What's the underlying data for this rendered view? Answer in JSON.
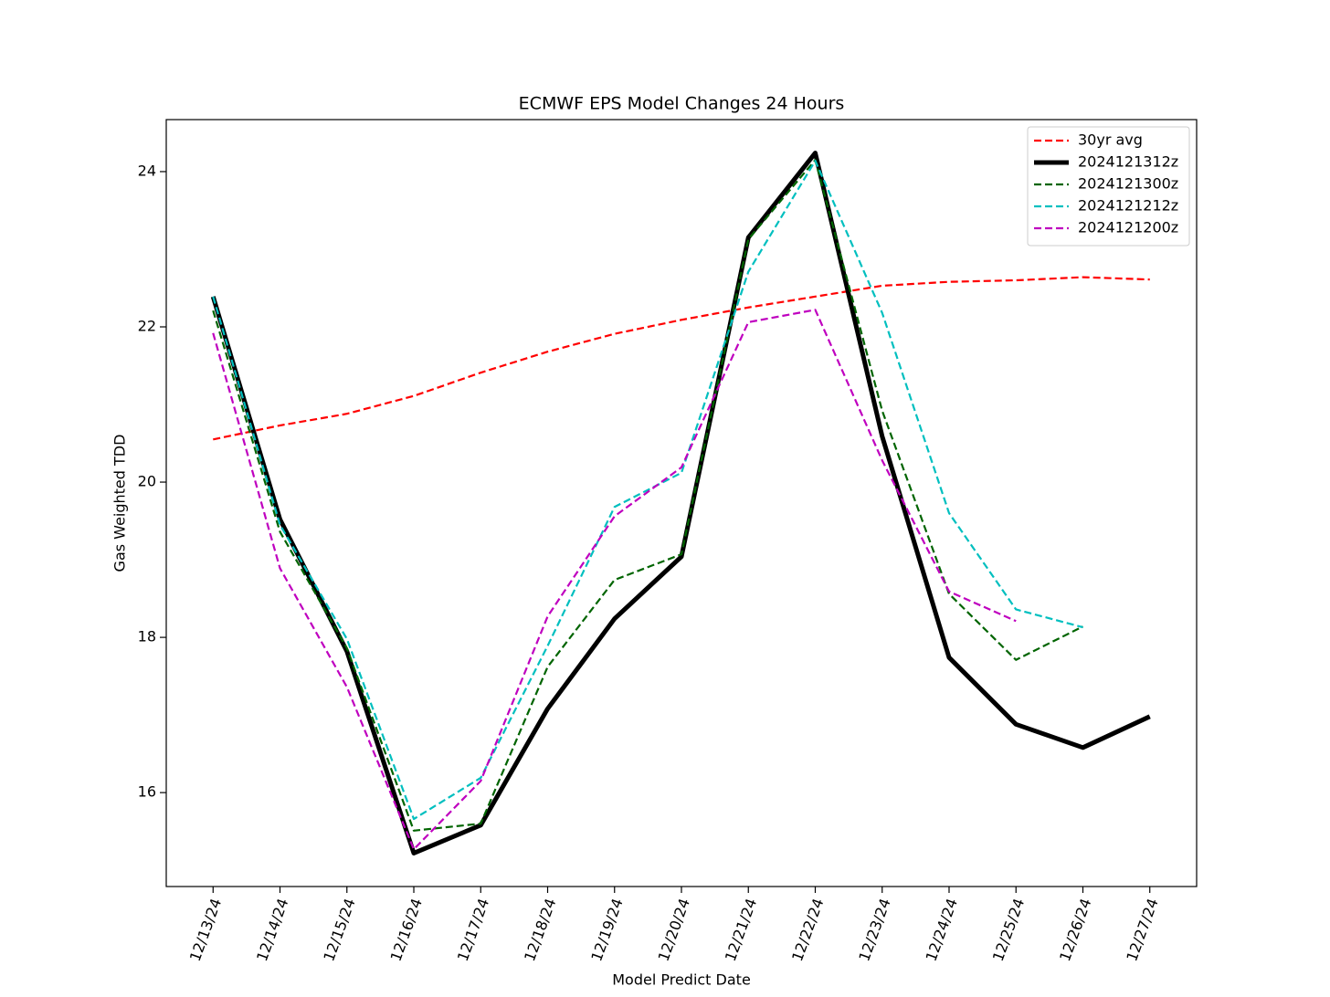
{
  "chart_data": {
    "type": "line",
    "title": "ECMWF EPS Model Changes 24 Hours",
    "xlabel": "Model Predict Date",
    "ylabel": "Gas Weighted TDD",
    "categories": [
      "12/13/24",
      "12/14/24",
      "12/15/24",
      "12/16/24",
      "12/17/24",
      "12/18/24",
      "12/19/24",
      "12/20/24",
      "12/21/24",
      "12/22/24",
      "12/23/24",
      "12/24/24",
      "12/25/24",
      "12/26/24",
      "12/27/24"
    ],
    "ylim": [
      14.79,
      24.67
    ],
    "yticks": [
      16,
      18,
      20,
      22,
      24
    ],
    "grid": false,
    "legend": "upper right",
    "series": [
      {
        "name": "30yr avg",
        "color": "#ff0000",
        "style": "dashed",
        "values": [
          20.55,
          20.73,
          20.88,
          21.11,
          21.41,
          21.68,
          21.91,
          22.09,
          22.25,
          22.39,
          22.53,
          22.58,
          22.6,
          22.64,
          22.61
        ]
      },
      {
        "name": "2024121312z",
        "color": "#000000",
        "style": "solid",
        "values": [
          22.39,
          19.52,
          17.82,
          15.22,
          15.58,
          17.08,
          18.24,
          19.04,
          23.15,
          24.24,
          20.59,
          17.74,
          16.88,
          16.58,
          16.98
        ]
      },
      {
        "name": "2024121300z",
        "color": "#006400",
        "style": "dashed",
        "values": [
          22.21,
          19.36,
          17.86,
          15.51,
          15.6,
          17.62,
          18.74,
          19.07,
          23.13,
          24.15,
          20.92,
          18.56,
          17.71,
          18.14,
          null
        ]
      },
      {
        "name": "2024121212z",
        "color": "#00bfbf",
        "style": "dashed",
        "values": [
          22.39,
          19.45,
          17.98,
          15.66,
          16.19,
          17.89,
          19.68,
          20.12,
          22.71,
          24.14,
          22.18,
          19.6,
          18.36,
          18.13,
          null
        ]
      },
      {
        "name": "2024121200z",
        "color": "#bf00bf",
        "style": "dashed",
        "values": [
          21.92,
          18.89,
          17.36,
          15.27,
          16.15,
          18.27,
          19.56,
          20.19,
          22.06,
          22.22,
          20.28,
          18.59,
          18.21,
          null,
          null
        ]
      }
    ]
  }
}
